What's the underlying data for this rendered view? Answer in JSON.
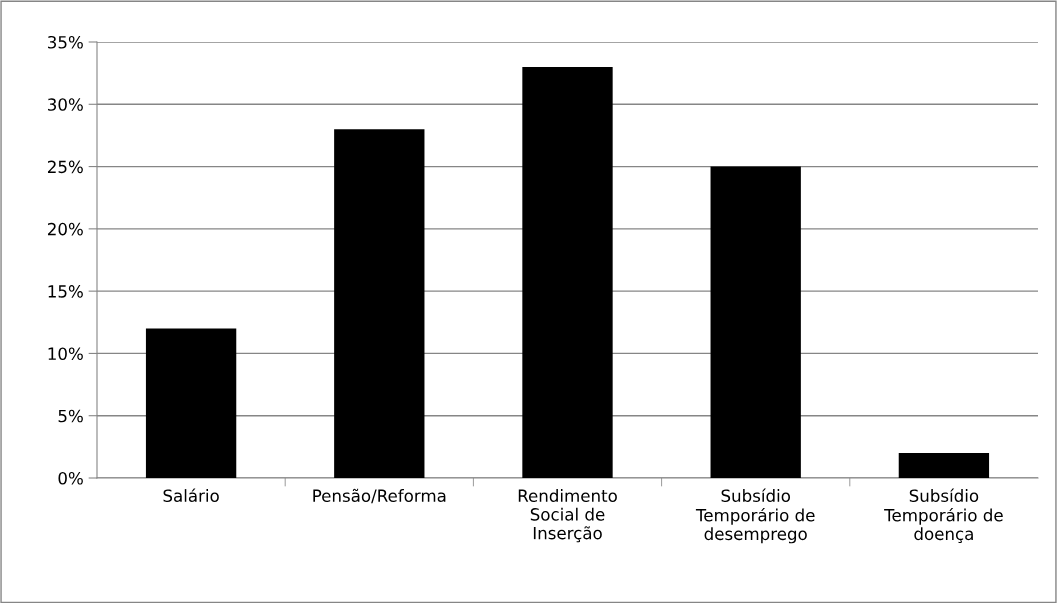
{
  "chart_data": {
    "type": "bar",
    "categories": [
      "Salário",
      "Pensão/Reforma",
      "Rendimento\nSocial de\nInserção",
      "Subsídio\nTemporário de\ndesemprego",
      "Subsídio\nTemporário de\ndoença"
    ],
    "values": [
      12,
      28,
      33,
      25,
      2
    ],
    "color": "#000000",
    "ylim": [
      0,
      35
    ],
    "yticks": [
      {
        "value": 0,
        "label": "0%"
      },
      {
        "value": 5,
        "label": "5%"
      },
      {
        "value": 10,
        "label": "10%"
      },
      {
        "value": 15,
        "label": "15%"
      },
      {
        "value": 20,
        "label": "20%"
      },
      {
        "value": 25,
        "label": "25%"
      },
      {
        "value": 30,
        "label": "30%"
      },
      {
        "value": 35,
        "label": "35%"
      }
    ],
    "grid": "y"
  }
}
